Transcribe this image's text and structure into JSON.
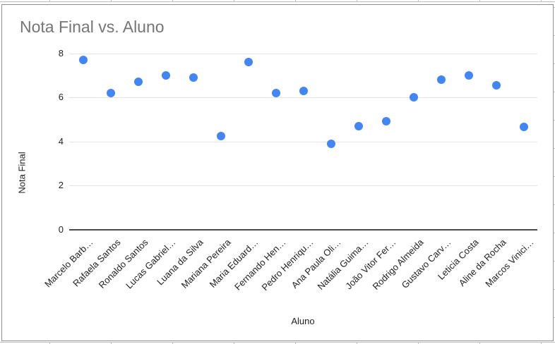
{
  "chart_data": {
    "type": "scatter",
    "title": "Nota Final vs. Aluno",
    "xlabel": "Aluno",
    "ylabel": "Nota Final",
    "categories": [
      "Marcelo Barb…",
      "Rafaela Santos",
      "Ronaldo Santos",
      "Lucas Gabriel…",
      "Luana da Silva",
      "Mariana Pereira",
      "Maria Eduard…",
      "Fernando Hen…",
      "Pedro Henriqu…",
      "Ana Paula Oli…",
      "Natália Guima…",
      "João Vitor Fer…",
      "Rodrigo Almeida",
      "Gustavo Carv…",
      "Leticia Costa",
      "Aline da Rocha",
      "Marcos Vinici…"
    ],
    "series": [
      {
        "name": "Nota Final",
        "values": [
          7.7,
          6.2,
          6.7,
          7.0,
          6.9,
          4.25,
          7.6,
          6.2,
          6.3,
          3.9,
          4.7,
          4.9,
          6.0,
          6.8,
          7.0,
          6.55,
          4.65
        ]
      }
    ],
    "ylim": [
      0,
      8
    ],
    "yticks": [
      0,
      2,
      4,
      6,
      8
    ],
    "grid": true,
    "legend": "none",
    "colors": {
      "point": "#4285f4",
      "title_text": "#757575",
      "axis_text": "#1f1f1f",
      "gridline": "#e3e3e3",
      "baseline": "#4a4a4a",
      "chart_border": "#8f8f8f",
      "sheet_gridline": "#bdbdbd"
    }
  }
}
